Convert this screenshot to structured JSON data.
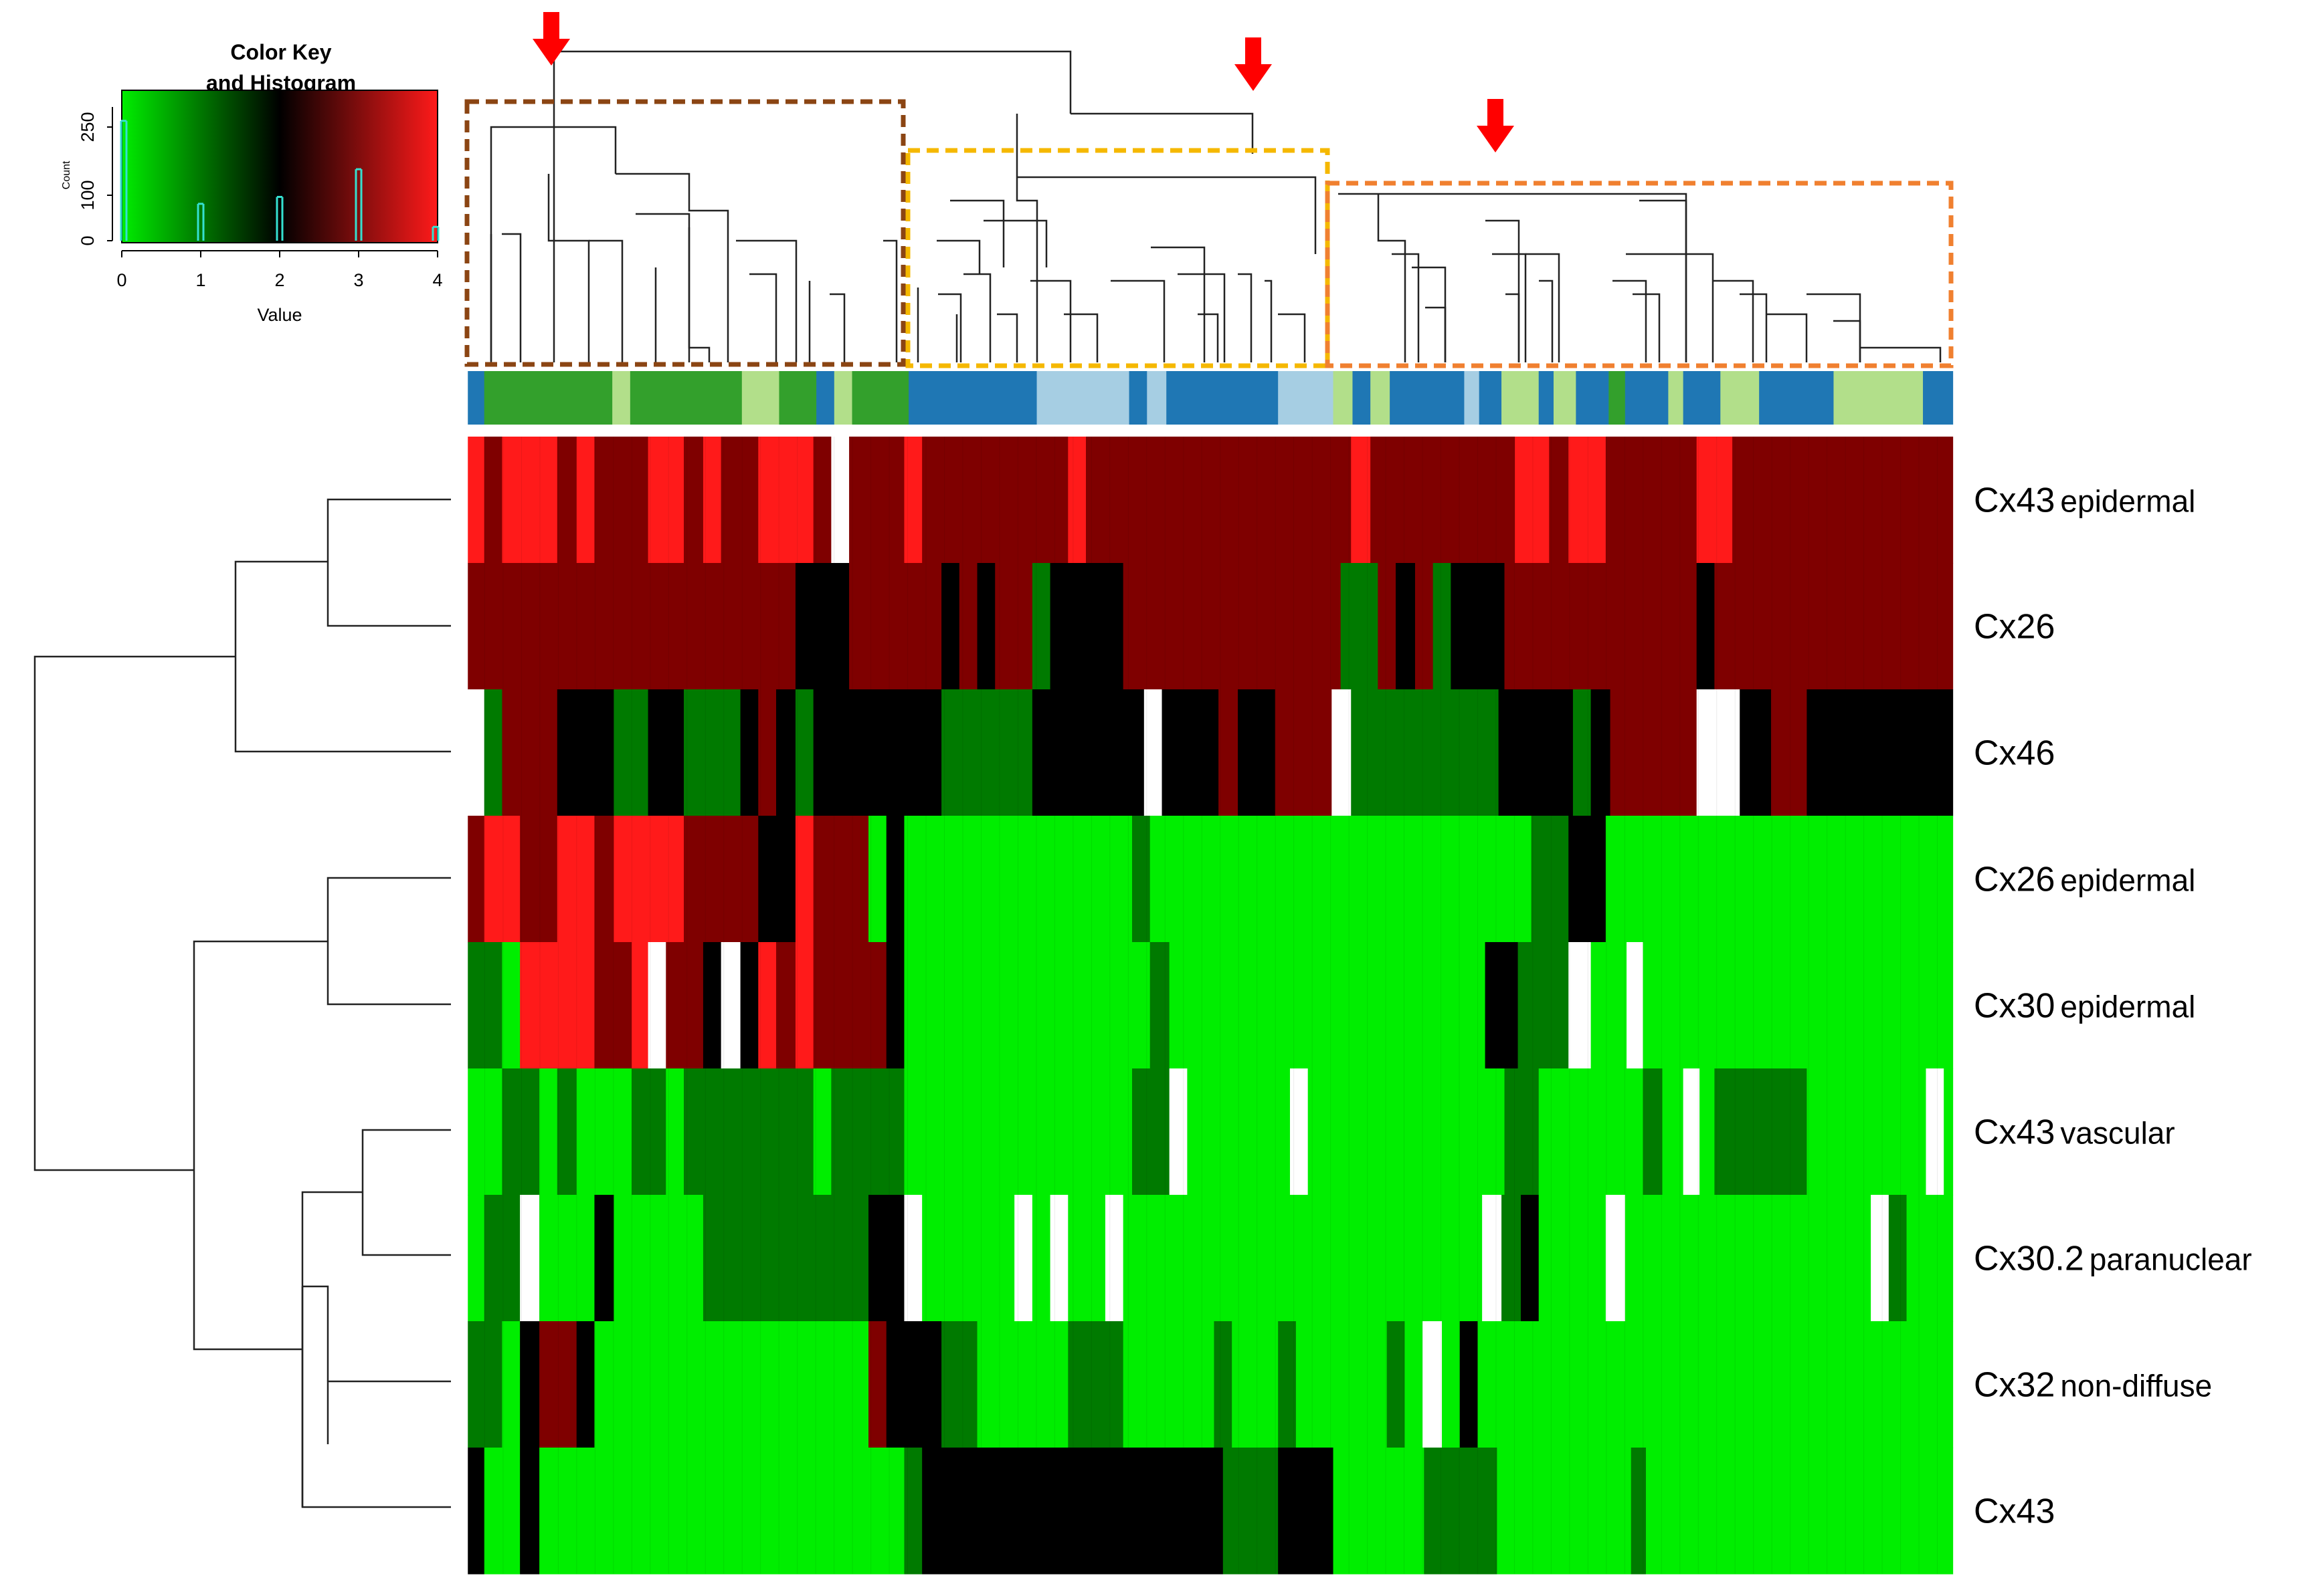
{
  "chart_data": {
    "type": "heatmap",
    "title": "",
    "color_key": {
      "title_line1": "Color Key",
      "title_line2": "and Histogram",
      "xlabel": "Value",
      "ylabel": "Count",
      "x_ticks": [
        "0",
        "1",
        "2",
        "3",
        "4"
      ],
      "y_ticks": [
        "0",
        "100",
        "250"
      ],
      "value_range": [
        0,
        4
      ],
      "gradient_colors": [
        "#00ee00",
        "#000000",
        "#ff1a1a"
      ],
      "histogram": [
        {
          "value": 0,
          "count": 260
        },
        {
          "value": 1,
          "count": 80
        },
        {
          "value": 2,
          "count": 95
        },
        {
          "value": 3,
          "count": 155
        },
        {
          "value": 4,
          "count": 30
        }
      ]
    },
    "rows": [
      {
        "name": "Cx43",
        "suffix": "epidermal"
      },
      {
        "name": "Cx26",
        "suffix": ""
      },
      {
        "name": "Cx46",
        "suffix": ""
      },
      {
        "name": "Cx26",
        "suffix": "epidermal"
      },
      {
        "name": "Cx30",
        "suffix": "epidermal"
      },
      {
        "name": "Cx43",
        "suffix": "vascular"
      },
      {
        "name": "Cx30.2",
        "suffix": "paranuclear"
      },
      {
        "name": "Cx32",
        "suffix": "non-diffuse"
      },
      {
        "name": "Cx43",
        "suffix": ""
      }
    ],
    "n_columns": 81,
    "value_colors": {
      "0": "#00ee00",
      "1": "#007a00",
      "2": "#000000",
      "3": "#7f0000",
      "4": "#ff1a1a",
      "NA": "#ffffff"
    },
    "heatmap_rows": [
      [
        [
          0.001,
          0.012,
          4
        ],
        [
          0.012,
          0.024,
          3
        ],
        [
          0.024,
          0.061,
          4
        ],
        [
          0.061,
          0.074,
          3
        ],
        [
          0.074,
          0.086,
          4
        ],
        [
          0.086,
          0.122,
          3
        ],
        [
          0.122,
          0.146,
          4
        ],
        [
          0.146,
          0.159,
          3
        ],
        [
          0.159,
          0.171,
          4
        ],
        [
          0.171,
          0.196,
          3
        ],
        [
          0.196,
          0.233,
          4
        ],
        [
          0.233,
          0.245,
          3
        ],
        [
          0.245,
          0.257,
          "NA"
        ],
        [
          0.257,
          0.294,
          3
        ],
        [
          0.294,
          0.306,
          4
        ],
        [
          0.306,
          0.404,
          3
        ],
        [
          0.404,
          0.416,
          4
        ],
        [
          0.416,
          0.594,
          3
        ],
        [
          0.594,
          0.607,
          4
        ],
        [
          0.607,
          0.704,
          3
        ],
        [
          0.704,
          0.727,
          4
        ],
        [
          0.727,
          0.74,
          3
        ],
        [
          0.74,
          0.765,
          4
        ],
        [
          0.765,
          0.826,
          3
        ],
        [
          0.826,
          0.85,
          4
        ],
        [
          0.85,
          0.998,
          3
        ]
      ],
      [
        [
          0.001,
          0.221,
          3
        ],
        [
          0.221,
          0.257,
          2
        ],
        [
          0.257,
          0.319,
          3
        ],
        [
          0.319,
          0.331,
          2
        ],
        [
          0.331,
          0.343,
          3
        ],
        [
          0.343,
          0.355,
          2
        ],
        [
          0.355,
          0.38,
          3
        ],
        [
          0.38,
          0.392,
          1
        ],
        [
          0.392,
          0.441,
          2
        ],
        [
          0.441,
          0.587,
          3
        ],
        [
          0.587,
          0.612,
          1
        ],
        [
          0.612,
          0.624,
          3
        ],
        [
          0.624,
          0.637,
          2
        ],
        [
          0.637,
          0.649,
          3
        ],
        [
          0.649,
          0.661,
          1
        ],
        [
          0.661,
          0.697,
          2
        ],
        [
          0.697,
          0.826,
          3
        ],
        [
          0.826,
          0.838,
          2
        ],
        [
          0.838,
          0.998,
          3
        ]
      ],
      [
        [
          0.001,
          0.012,
          "NA"
        ],
        [
          0.012,
          0.024,
          1
        ],
        [
          0.024,
          0.061,
          3
        ],
        [
          0.061,
          0.099,
          2
        ],
        [
          0.099,
          0.122,
          1
        ],
        [
          0.122,
          0.146,
          2
        ],
        [
          0.146,
          0.184,
          1
        ],
        [
          0.184,
          0.196,
          2
        ],
        [
          0.196,
          0.208,
          3
        ],
        [
          0.208,
          0.221,
          2
        ],
        [
          0.221,
          0.233,
          1
        ],
        [
          0.233,
          0.319,
          2
        ],
        [
          0.319,
          0.38,
          1
        ],
        [
          0.38,
          0.455,
          2
        ],
        [
          0.455,
          0.467,
          "NA"
        ],
        [
          0.467,
          0.505,
          2
        ],
        [
          0.505,
          0.518,
          3
        ],
        [
          0.518,
          0.543,
          2
        ],
        [
          0.543,
          0.581,
          3
        ],
        [
          0.581,
          0.594,
          "NA"
        ],
        [
          0.594,
          0.693,
          1
        ],
        [
          0.693,
          0.743,
          2
        ],
        [
          0.743,
          0.755,
          1
        ],
        [
          0.755,
          0.768,
          2
        ],
        [
          0.768,
          0.826,
          3
        ],
        [
          0.826,
          0.855,
          "NA"
        ],
        [
          0.855,
          0.876,
          2
        ],
        [
          0.876,
          0.9,
          3
        ],
        [
          0.9,
          0.924,
          2
        ],
        [
          0.924,
          0.998,
          2
        ]
      ],
      [
        [
          0.001,
          0.012,
          3
        ],
        [
          0.012,
          0.036,
          4
        ],
        [
          0.036,
          0.061,
          3
        ],
        [
          0.061,
          0.086,
          4
        ],
        [
          0.086,
          0.099,
          3
        ],
        [
          0.099,
          0.146,
          4
        ],
        [
          0.146,
          0.196,
          3
        ],
        [
          0.196,
          0.221,
          2
        ],
        [
          0.221,
          0.233,
          4
        ],
        [
          0.233,
          0.27,
          3
        ],
        [
          0.27,
          0.282,
          0
        ],
        [
          0.282,
          0.294,
          2
        ],
        [
          0.294,
          0.447,
          0
        ],
        [
          0.447,
          0.459,
          1
        ],
        [
          0.459,
          0.715,
          0
        ],
        [
          0.715,
          0.74,
          1
        ],
        [
          0.74,
          0.765,
          2
        ],
        [
          0.765,
          0.998,
          0
        ]
      ],
      [
        [
          0.001,
          0.024,
          1
        ],
        [
          0.024,
          0.036,
          0
        ],
        [
          0.036,
          0.086,
          4
        ],
        [
          0.086,
          0.111,
          3
        ],
        [
          0.111,
          0.122,
          4
        ],
        [
          0.122,
          0.134,
          "NA"
        ],
        [
          0.134,
          0.159,
          3
        ],
        [
          0.159,
          0.171,
          2
        ],
        [
          0.171,
          0.184,
          "NA"
        ],
        [
          0.184,
          0.196,
          2
        ],
        [
          0.196,
          0.208,
          4
        ],
        [
          0.208,
          0.221,
          3
        ],
        [
          0.221,
          0.233,
          4
        ],
        [
          0.233,
          0.282,
          3
        ],
        [
          0.282,
          0.294,
          2
        ],
        [
          0.294,
          0.459,
          0
        ],
        [
          0.459,
          0.472,
          1
        ],
        [
          0.472,
          0.684,
          0
        ],
        [
          0.684,
          0.706,
          2
        ],
        [
          0.706,
          0.74,
          1
        ],
        [
          0.74,
          0.755,
          "NA"
        ],
        [
          0.755,
          0.779,
          0
        ],
        [
          0.779,
          0.79,
          "NA"
        ],
        [
          0.79,
          0.998,
          0
        ]
      ],
      [
        [
          0.001,
          0.024,
          0
        ],
        [
          0.024,
          0.049,
          1
        ],
        [
          0.049,
          0.061,
          0
        ],
        [
          0.061,
          0.074,
          1
        ],
        [
          0.074,
          0.111,
          0
        ],
        [
          0.111,
          0.134,
          1
        ],
        [
          0.134,
          0.146,
          0
        ],
        [
          0.146,
          0.233,
          1
        ],
        [
          0.233,
          0.245,
          0
        ],
        [
          0.245,
          0.294,
          1
        ],
        [
          0.294,
          0.447,
          0
        ],
        [
          0.447,
          0.472,
          1
        ],
        [
          0.472,
          0.484,
          "NA"
        ],
        [
          0.484,
          0.553,
          0
        ],
        [
          0.553,
          0.565,
          "NA"
        ],
        [
          0.565,
          0.697,
          0
        ],
        [
          0.697,
          0.72,
          1
        ],
        [
          0.72,
          0.79,
          0
        ],
        [
          0.79,
          0.803,
          1
        ],
        [
          0.803,
          0.817,
          0
        ],
        [
          0.817,
          0.828,
          "NA"
        ],
        [
          0.828,
          0.838,
          0
        ],
        [
          0.838,
          0.852,
          1
        ],
        [
          0.852,
          0.9,
          1
        ],
        [
          0.9,
          0.98,
          0
        ],
        [
          0.98,
          0.992,
          "NA"
        ],
        [
          0.992,
          0.998,
          0
        ]
      ],
      [
        [
          0.001,
          0.012,
          0
        ],
        [
          0.012,
          0.036,
          1
        ],
        [
          0.036,
          0.049,
          "NA"
        ],
        [
          0.049,
          0.086,
          0
        ],
        [
          0.086,
          0.099,
          2
        ],
        [
          0.099,
          0.159,
          0
        ],
        [
          0.159,
          0.27,
          1
        ],
        [
          0.27,
          0.294,
          2
        ],
        [
          0.294,
          0.306,
          "NA"
        ],
        [
          0.306,
          0.368,
          0
        ],
        [
          0.368,
          0.38,
          "NA"
        ],
        [
          0.38,
          0.392,
          0
        ],
        [
          0.392,
          0.404,
          "NA"
        ],
        [
          0.404,
          0.429,
          0
        ],
        [
          0.429,
          0.441,
          "NA"
        ],
        [
          0.441,
          0.682,
          0
        ],
        [
          0.682,
          0.695,
          "NA"
        ],
        [
          0.695,
          0.708,
          1
        ],
        [
          0.708,
          0.72,
          2
        ],
        [
          0.72,
          0.765,
          0
        ],
        [
          0.765,
          0.778,
          "NA"
        ],
        [
          0.778,
          0.943,
          0
        ],
        [
          0.943,
          0.955,
          "NA"
        ],
        [
          0.955,
          0.967,
          1
        ],
        [
          0.967,
          0.998,
          0
        ]
      ],
      [
        [
          0.001,
          0.024,
          1
        ],
        [
          0.024,
          0.036,
          0
        ],
        [
          0.036,
          0.049,
          2
        ],
        [
          0.049,
          0.074,
          3
        ],
        [
          0.074,
          0.086,
          2
        ],
        [
          0.086,
          0.27,
          0
        ],
        [
          0.27,
          0.282,
          3
        ],
        [
          0.282,
          0.319,
          2
        ],
        [
          0.319,
          0.343,
          1
        ],
        [
          0.343,
          0.404,
          0
        ],
        [
          0.404,
          0.441,
          1
        ],
        [
          0.441,
          0.502,
          0
        ],
        [
          0.502,
          0.514,
          1
        ],
        [
          0.514,
          0.545,
          0
        ],
        [
          0.545,
          0.557,
          1
        ],
        [
          0.557,
          0.618,
          0
        ],
        [
          0.618,
          0.63,
          1
        ],
        [
          0.63,
          0.642,
          0
        ],
        [
          0.642,
          0.655,
          "NA"
        ],
        [
          0.655,
          0.667,
          0
        ],
        [
          0.667,
          0.679,
          2
        ],
        [
          0.679,
          0.998,
          0
        ]
      ],
      [
        [
          0.001,
          0.012,
          2
        ],
        [
          0.012,
          0.036,
          0
        ],
        [
          0.036,
          0.049,
          2
        ],
        [
          0.049,
          0.294,
          0
        ],
        [
          0.294,
          0.306,
          1
        ],
        [
          0.306,
          0.508,
          2
        ],
        [
          0.508,
          0.545,
          1
        ],
        [
          0.545,
          0.582,
          2
        ],
        [
          0.582,
          0.643,
          0
        ],
        [
          0.643,
          0.692,
          1
        ],
        [
          0.692,
          0.782,
          0
        ],
        [
          0.782,
          0.792,
          1
        ],
        [
          0.792,
          0.998,
          0
        ]
      ]
    ],
    "column_groups": {
      "colors": [
        "#1f77b4",
        "#a6cee3",
        "#33a02c",
        "#b2df8a"
      ],
      "segments": [
        [
          0.001,
          0.012,
          0
        ],
        [
          0.012,
          0.098,
          2
        ],
        [
          0.098,
          0.11,
          3
        ],
        [
          0.11,
          0.185,
          2
        ],
        [
          0.185,
          0.21,
          3
        ],
        [
          0.21,
          0.235,
          2
        ],
        [
          0.235,
          0.247,
          0
        ],
        [
          0.247,
          0.259,
          3
        ],
        [
          0.259,
          0.297,
          2
        ],
        [
          0.297,
          0.383,
          0
        ],
        [
          0.383,
          0.445,
          1
        ],
        [
          0.445,
          0.457,
          0
        ],
        [
          0.457,
          0.47,
          1
        ],
        [
          0.47,
          0.545,
          0
        ],
        [
          0.545,
          0.582,
          1
        ],
        [
          0.582,
          0.595,
          3
        ],
        [
          0.595,
          0.607,
          0
        ],
        [
          0.607,
          0.62,
          3
        ],
        [
          0.62,
          0.67,
          0
        ],
        [
          0.67,
          0.68,
          1
        ],
        [
          0.68,
          0.695,
          0
        ],
        [
          0.695,
          0.72,
          3
        ],
        [
          0.72,
          0.73,
          0
        ],
        [
          0.73,
          0.745,
          3
        ],
        [
          0.745,
          0.767,
          0
        ],
        [
          0.767,
          0.778,
          2
        ],
        [
          0.778,
          0.807,
          0
        ],
        [
          0.807,
          0.817,
          3
        ],
        [
          0.817,
          0.842,
          0
        ],
        [
          0.842,
          0.868,
          3
        ],
        [
          0.868,
          0.918,
          0
        ],
        [
          0.918,
          0.978,
          3
        ],
        [
          0.978,
          0.998,
          0
        ]
      ]
    },
    "highlight_colors": {
      "arrow": "#ff0000",
      "cluster_1_box": "#8b4513",
      "cluster_2_box": "#f5b800",
      "cluster_3_box": "#f08030"
    }
  }
}
